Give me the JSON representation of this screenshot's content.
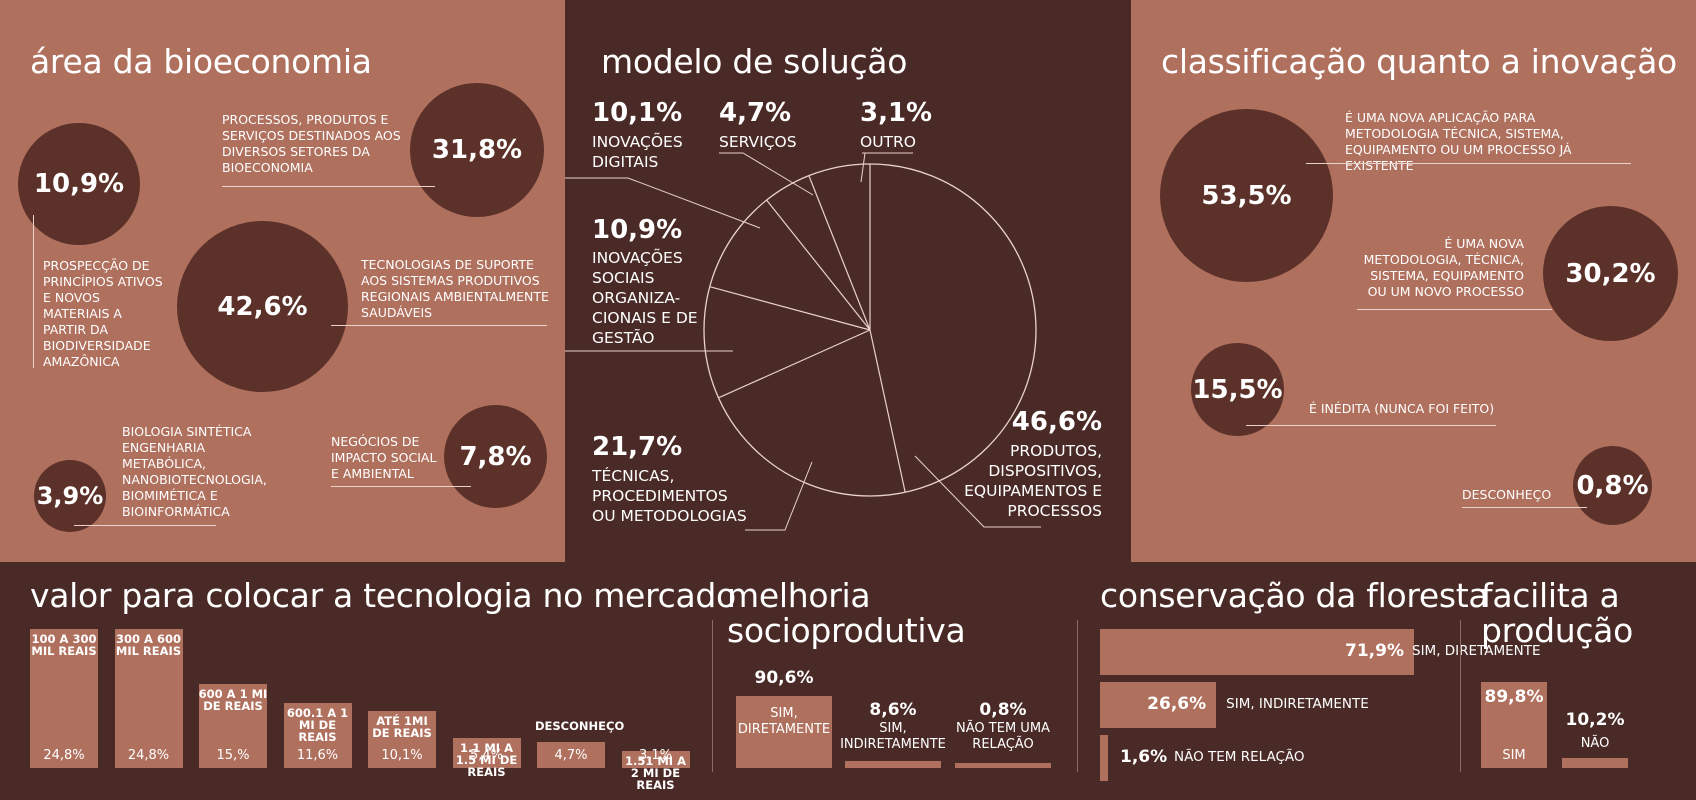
{
  "area": {
    "title": "área da bioeconomia",
    "items": [
      {
        "value": "31,8%",
        "label": "PROCESSOS, PRODUTOS E SERVIÇOS DESTINADOS AOS DIVERSOS SETORES DA BIOECONOMIA"
      },
      {
        "value": "10,9%",
        "label": "PROSPECÇÃO DE PRINCÍPIOS ATIVOS E NOVOS MATERIAIS A PARTIR DA BIODIVERSIDADE AMAZÔNICA"
      },
      {
        "value": "42,6%",
        "label": "TECNOLOGIAS DE SUPORTE AOS SISTEMAS PRODUTIVOS REGIONAIS AMBIENTALMENTE SAUDÁVEIS"
      },
      {
        "value": "7,8%",
        "label": "NEGÓCIOS DE IMPACTO SOCIAL E AMBIENTAL"
      },
      {
        "value": "3,9%",
        "label": "BIOLOGIA SINTÉTICA ENGENHARIA METABÓLICA, NANOBIOTECNOLOGIA, BIOMIMÉTICA E BIOINFORMÁTICA"
      }
    ]
  },
  "modelo": {
    "title": "modelo de solução",
    "items": [
      {
        "value": "10,1%",
        "label": "INOVAÇÕES DIGITAIS"
      },
      {
        "value": "4,7%",
        "label": "SERVIÇOS"
      },
      {
        "value": "3,1%",
        "label": "OUTRO"
      },
      {
        "value": "10,9%",
        "label": "INOVAÇÕES SOCIAIS ORGANIZA-CIONAIS E DE GESTÃO"
      },
      {
        "value": "21,7%",
        "label": "TÉCNICAS, PROCEDIMENTOS OU METODOLOGIAS"
      },
      {
        "value": "46,6%",
        "label": "PRODUTOS, DISPOSITIVOS, EQUIPAMENTOS E PROCESSOS"
      }
    ]
  },
  "classificacao": {
    "title": "classificação quanto a inovação",
    "items": [
      {
        "value": "53,5%",
        "label": "É UMA NOVA APLICAÇÃO PARA METODOLOGIA TÉCNICA, SISTEMA, EQUIPAMENTO OU UM PROCESSO JÁ EXISTENTE"
      },
      {
        "value": "30,2%",
        "label": "É UMA NOVA METODOLOGIA, TÉCNICA, SISTEMA, EQUIPAMENTO OU UM NOVO PROCESSO"
      },
      {
        "value": "15,5%",
        "label": "É INÉDITA (NUNCA FOI FEITO)"
      },
      {
        "value": "0,8%",
        "label": "DESCONHEÇO"
      }
    ]
  },
  "valor": {
    "title": "valor para colocar a tecnologia no mercado",
    "bars": [
      {
        "cat": "100 A 300 MIL REAIS",
        "value": "24,8%"
      },
      {
        "cat": "300 A 600 MIL REAIS",
        "value": "24,8%"
      },
      {
        "cat": "600 A 1 MI DE REAIS",
        "value": "15,%"
      },
      {
        "cat": "600.1 A 1 MI DE REAIS",
        "value": "11,6%"
      },
      {
        "cat": "ATÉ 1MI DE REAIS",
        "value": "10,1%"
      },
      {
        "cat": "1.1 MI A 1.5 MI DE REAIS",
        "value": "5,4%"
      },
      {
        "cat": "DESCONHEÇO",
        "value": "4,7%"
      },
      {
        "cat": "1.51 MI A 2 MI DE REAIS",
        "value": "3,1%"
      }
    ]
  },
  "melhoria": {
    "title_line1": "melhoria",
    "title_line2": "socioprodutiva",
    "items": [
      {
        "value": "90,6%",
        "label": "SIM, DIRETAMENTE"
      },
      {
        "value": "8,6%",
        "label": "SIM, INDIRETAMENTE"
      },
      {
        "value": "0,8%",
        "label": "NÃO TEM UMA RELAÇÃO"
      }
    ]
  },
  "conservacao": {
    "title": "conservação da floresta",
    "items": [
      {
        "value": "71,9%",
        "label": "SIM, DIRETAMENTE"
      },
      {
        "value": "26,6%",
        "label": "SIM, INDIRETAMENTE"
      },
      {
        "value": "1,6%",
        "label": "NÃO TEM RELAÇÃO"
      }
    ]
  },
  "facilita": {
    "title_line1": "facilita a",
    "title_line2": "produção",
    "items": [
      {
        "value": "89,8%",
        "label": "SIM"
      },
      {
        "value": "10,2%",
        "label": "NÃO"
      }
    ]
  },
  "colors": {
    "light": "#b0705e",
    "dark": "#4a2a26",
    "circle": "#5c3129",
    "text": "#ffffff"
  },
  "chart_data": [
    {
      "type": "bubble",
      "title": "área da bioeconomia",
      "categories": [
        "PROCESSOS, PRODUTOS E SERVIÇOS DESTINADOS AOS DIVERSOS SETORES DA BIOECONOMIA",
        "PROSPECÇÃO DE PRINCÍPIOS ATIVOS E NOVOS MATERIAIS A PARTIR DA BIODIVERSIDADE AMAZÔNICA",
        "TECNOLOGIAS DE SUPORTE AOS SISTEMAS PRODUTIVOS REGIONAIS AMBIENTALMENTE SAUDÁVEIS",
        "NEGÓCIOS DE IMPACTO SOCIAL E AMBIENTAL",
        "BIOLOGIA SINTÉTICA ENGENHARIA METABÓLICA, NANOBIOTECNOLOGIA, BIOMIMÉTICA E BIOINFORMÁTICA"
      ],
      "values": [
        31.8,
        10.9,
        42.6,
        7.8,
        3.9
      ]
    },
    {
      "type": "pie",
      "title": "modelo de solução",
      "categories": [
        "PRODUTOS, DISPOSITIVOS, EQUIPAMENTOS E PROCESSOS",
        "TÉCNICAS, PROCEDIMENTOS OU METODOLOGIAS",
        "INOVAÇÕES SOCIAIS ORGANIZA-CIONAIS E DE GESTÃO",
        "INOVAÇÕES DIGITAIS",
        "SERVIÇOS",
        "OUTRO"
      ],
      "values": [
        46.6,
        21.7,
        10.9,
        10.1,
        4.7,
        3.1
      ]
    },
    {
      "type": "bubble",
      "title": "classificação quanto a inovação",
      "categories": [
        "É UMA NOVA APLICAÇÃO PARA METODOLOGIA TÉCNICA, SISTEMA, EQUIPAMENTO OU UM PROCESSO JÁ EXISTENTE",
        "É UMA NOVA METODOLOGIA, TÉCNICA, SISTEMA, EQUIPAMENTO OU UM NOVO PROCESSO",
        "É INÉDITA (NUNCA FOI FEITO)",
        "DESCONHEÇO"
      ],
      "values": [
        53.5,
        30.2,
        15.5,
        0.8
      ]
    },
    {
      "type": "bar",
      "title": "valor para colocar a tecnologia no mercado",
      "categories": [
        "100 A 300 MIL REAIS",
        "300 A 600 MIL REAIS",
        "600 A 1 MI DE REAIS",
        "600.1 A 1 MI DE REAIS",
        "ATÉ 1MI DE REAIS",
        "1.1 MI A 1.5 MI DE REAIS",
        "DESCONHEÇO",
        "1.51 MI A 2 MI DE REAIS"
      ],
      "values": [
        24.8,
        24.8,
        15.0,
        11.6,
        10.1,
        5.4,
        4.7,
        3.1
      ]
    },
    {
      "type": "bar",
      "title": "melhoria socioprodutiva",
      "categories": [
        "SIM, DIRETAMENTE",
        "SIM, INDIRETAMENTE",
        "NÃO TEM UMA RELAÇÃO"
      ],
      "values": [
        90.6,
        8.6,
        0.8
      ]
    },
    {
      "type": "bar",
      "orientation": "horizontal",
      "title": "conservação da floresta",
      "categories": [
        "SIM, DIRETAMENTE",
        "SIM, INDIRETAMENTE",
        "NÃO TEM RELAÇÃO"
      ],
      "values": [
        71.9,
        26.6,
        1.6
      ]
    },
    {
      "type": "bar",
      "title": "facilita a produção",
      "categories": [
        "SIM",
        "NÃO"
      ],
      "values": [
        89.8,
        10.2
      ]
    }
  ]
}
